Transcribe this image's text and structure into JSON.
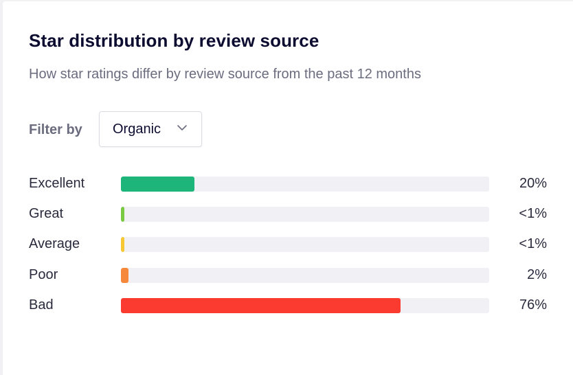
{
  "card": {
    "title": "Star distribution by review source",
    "subtitle": "How star ratings differ by review source from the past 12 months"
  },
  "filter": {
    "label": "Filter by",
    "selected": "Organic",
    "icon": "chevron-down-icon"
  },
  "distribution": [
    {
      "label": "Excellent",
      "percent_text": "20%",
      "fill_fraction": 0.2,
      "color": "#1db57a"
    },
    {
      "label": "Great",
      "percent_text": "<1%",
      "fill_fraction": 0.009,
      "color": "#7ac943"
    },
    {
      "label": "Average",
      "percent_text": "<1%",
      "fill_fraction": 0.009,
      "color": "#f7c833"
    },
    {
      "label": "Poor",
      "percent_text": "2%",
      "fill_fraction": 0.02,
      "color": "#f5883a"
    },
    {
      "label": "Bad",
      "percent_text": "76%",
      "fill_fraction": 0.76,
      "color": "#fb3b2f"
    }
  ]
}
